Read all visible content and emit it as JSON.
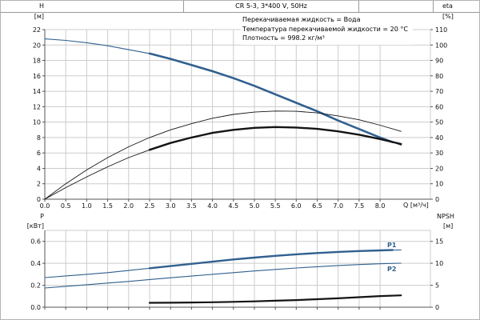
{
  "header": {
    "title": "CR 5-3, 3*400 V, 50Hz"
  },
  "annotations": [
    "Перекачиваемая жидкость = Вода",
    "Температура перекачиваемой жидкости = 20 °C",
    "Плотность = 998.2 кг/м³"
  ],
  "axis_labels": {
    "h": [
      "H",
      "[м]"
    ],
    "eta": [
      "eta",
      "[%]"
    ],
    "p": [
      "P",
      "[кВт]"
    ],
    "npsh": [
      "NPSH",
      "[м]"
    ],
    "q": "Q [м³/ч]"
  },
  "curve_labels": {
    "p1": "P1",
    "p2": "P2"
  },
  "colors": {
    "blue": "#31608f",
    "black": "#141414",
    "grid": "#cccccc",
    "axis": "#555555"
  },
  "chart_data": [
    {
      "id": "head",
      "type": "line",
      "title": "CR 5-3, 3*400 V, 50Hz",
      "xlabel": "Q [м³/ч]",
      "ylabel_left": "H [м]",
      "ylabel_right": "eta [%]",
      "xlim": [
        0,
        9.2
      ],
      "ylim_left": [
        0,
        22
      ],
      "ylim_right": [
        0,
        110
      ],
      "xticks": [
        0,
        0.5,
        1,
        1.5,
        2,
        2.5,
        3,
        3.5,
        4,
        4.5,
        5,
        5.5,
        6,
        6.5,
        7,
        7.5,
        8
      ],
      "yticks_left": [
        0,
        2,
        4,
        6,
        8,
        10,
        12,
        14,
        16,
        18,
        20,
        22
      ],
      "yticks_right": [
        0,
        10,
        20,
        30,
        40,
        50,
        60,
        70,
        80,
        90,
        100,
        110
      ],
      "dp_x": 1,
      "dp_left": 0,
      "dp_right": 0,
      "grid": true,
      "series": [
        {
          "name": "head-curve",
          "axis": "left",
          "color": "blue",
          "width": 1.1,
          "points": [
            [
              0,
              20.8
            ],
            [
              0.5,
              20.6
            ],
            [
              1,
              20.3
            ],
            [
              1.5,
              19.9
            ],
            [
              2,
              19.4
            ],
            [
              2.5,
              18.9
            ],
            [
              3,
              18.2
            ],
            [
              3.5,
              17.4
            ],
            [
              4,
              16.6
            ],
            [
              4.5,
              15.7
            ],
            [
              5,
              14.7
            ],
            [
              5.5,
              13.6
            ],
            [
              6,
              12.5
            ],
            [
              6.5,
              11.4
            ],
            [
              7,
              10.2
            ],
            [
              7.5,
              9.1
            ],
            [
              8,
              8.0
            ],
            [
              8.5,
              7.0
            ]
          ]
        },
        {
          "name": "head-curve-duty",
          "axis": "left",
          "color": "blue",
          "width": 2.6,
          "points": [
            [
              2.5,
              18.9
            ],
            [
              3,
              18.2
            ],
            [
              3.5,
              17.4
            ],
            [
              4,
              16.6
            ],
            [
              4.5,
              15.7
            ],
            [
              5,
              14.7
            ],
            [
              5.5,
              13.6
            ],
            [
              6,
              12.5
            ],
            [
              6.5,
              11.4
            ],
            [
              7,
              10.2
            ],
            [
              7.5,
              9.1
            ],
            [
              8,
              8.0
            ],
            [
              8.3,
              7.4
            ]
          ]
        },
        {
          "name": "eta-pump-curve",
          "axis": "right",
          "color": "black",
          "width": 0.9,
          "points": [
            [
              0,
              0
            ],
            [
              0.5,
              10
            ],
            [
              1,
              19
            ],
            [
              1.5,
              27
            ],
            [
              2,
              34
            ],
            [
              2.5,
              40
            ],
            [
              3,
              45
            ],
            [
              3.5,
              49
            ],
            [
              4,
              52.5
            ],
            [
              4.5,
              55
            ],
            [
              5,
              56.5
            ],
            [
              5.5,
              57.2
            ],
            [
              6,
              57
            ],
            [
              6.5,
              56
            ],
            [
              7,
              54
            ],
            [
              7.5,
              51.5
            ],
            [
              8,
              48
            ],
            [
              8.5,
              44
            ]
          ]
        },
        {
          "name": "eta-total-curve",
          "axis": "right",
          "color": "black",
          "width": 0.9,
          "points": [
            [
              0,
              0
            ],
            [
              0.5,
              7.5
            ],
            [
              1,
              14.5
            ],
            [
              1.5,
              21
            ],
            [
              2,
              27
            ],
            [
              2.5,
              32
            ],
            [
              3,
              36.5
            ],
            [
              3.5,
              40
            ],
            [
              4,
              43
            ],
            [
              4.5,
              45
            ],
            [
              5,
              46.3
            ],
            [
              5.5,
              46.8
            ],
            [
              6,
              46.5
            ],
            [
              6.5,
              45.6
            ],
            [
              7,
              44
            ],
            [
              7.5,
              41.8
            ],
            [
              8,
              39
            ],
            [
              8.5,
              35.8
            ]
          ]
        },
        {
          "name": "eta-duty-curve",
          "axis": "right",
          "color": "black",
          "width": 2.4,
          "points": [
            [
              2.5,
              32
            ],
            [
              3,
              36.5
            ],
            [
              3.5,
              40
            ],
            [
              4,
              43
            ],
            [
              4.5,
              45
            ],
            [
              5,
              46.3
            ],
            [
              5.5,
              46.8
            ],
            [
              6,
              46.5
            ],
            [
              6.5,
              45.6
            ],
            [
              7,
              44
            ],
            [
              7.5,
              41.8
            ],
            [
              8,
              39
            ],
            [
              8.5,
              35.8
            ]
          ]
        }
      ]
    },
    {
      "id": "power",
      "type": "line",
      "title": "",
      "xlabel": "",
      "ylabel_left": "P [кВт]",
      "ylabel_right": "NPSH [м]",
      "xlim": [
        0,
        9.2
      ],
      "ylim_left": [
        0,
        0.7
      ],
      "ylim_right": [
        0,
        17.5
      ],
      "xticks": [
        0,
        0.5,
        1,
        1.5,
        2,
        2.5,
        3,
        3.5,
        4,
        4.5,
        5,
        5.5,
        6,
        6.5,
        7,
        7.5,
        8
      ],
      "yticks_left": [
        0,
        0.2,
        0.4,
        0.6
      ],
      "yticks_right": [
        0,
        5,
        10,
        15
      ],
      "dp_x": 1,
      "dp_left": 1,
      "dp_right": 0,
      "grid": true,
      "series": [
        {
          "name": "p1-curve",
          "axis": "left",
          "color": "blue",
          "width": 1.1,
          "points": [
            [
              0,
              0.27
            ],
            [
              0.5,
              0.285
            ],
            [
              1,
              0.3
            ],
            [
              1.5,
              0.315
            ],
            [
              2,
              0.335
            ],
            [
              2.5,
              0.355
            ],
            [
              3,
              0.375
            ],
            [
              3.5,
              0.395
            ],
            [
              4,
              0.415
            ],
            [
              4.5,
              0.435
            ],
            [
              5,
              0.452
            ],
            [
              5.5,
              0.468
            ],
            [
              6,
              0.482
            ],
            [
              6.5,
              0.494
            ],
            [
              7,
              0.504
            ],
            [
              7.5,
              0.512
            ],
            [
              8,
              0.518
            ],
            [
              8.5,
              0.522
            ]
          ]
        },
        {
          "name": "p1-curve-duty",
          "axis": "left",
          "color": "blue",
          "width": 2.4,
          "points": [
            [
              2.5,
              0.355
            ],
            [
              3,
              0.375
            ],
            [
              3.5,
              0.395
            ],
            [
              4,
              0.415
            ],
            [
              4.5,
              0.435
            ],
            [
              5,
              0.452
            ],
            [
              5.5,
              0.468
            ],
            [
              6,
              0.482
            ],
            [
              6.5,
              0.494
            ],
            [
              7,
              0.504
            ],
            [
              7.5,
              0.512
            ],
            [
              8,
              0.518
            ],
            [
              8.3,
              0.521
            ]
          ]
        },
        {
          "name": "p2-curve",
          "axis": "left",
          "color": "blue",
          "width": 1.1,
          "points": [
            [
              0,
              0.175
            ],
            [
              0.5,
              0.19
            ],
            [
              1,
              0.205
            ],
            [
              1.5,
              0.22
            ],
            [
              2,
              0.235
            ],
            [
              2.5,
              0.252
            ],
            [
              3,
              0.268
            ],
            [
              3.5,
              0.284
            ],
            [
              4,
              0.3
            ],
            [
              4.5,
              0.315
            ],
            [
              5,
              0.33
            ],
            [
              5.5,
              0.344
            ],
            [
              6,
              0.357
            ],
            [
              6.5,
              0.369
            ],
            [
              7,
              0.38
            ],
            [
              7.5,
              0.389
            ],
            [
              8,
              0.396
            ],
            [
              8.5,
              0.401
            ]
          ]
        },
        {
          "name": "npsh-curve",
          "axis": "right",
          "color": "black",
          "width": 2.2,
          "points": [
            [
              2.5,
              1.0
            ],
            [
              3,
              1.02
            ],
            [
              3.5,
              1.07
            ],
            [
              4,
              1.13
            ],
            [
              4.5,
              1.22
            ],
            [
              5,
              1.33
            ],
            [
              5.5,
              1.47
            ],
            [
              6,
              1.63
            ],
            [
              6.5,
              1.82
            ],
            [
              7,
              2.03
            ],
            [
              7.5,
              2.27
            ],
            [
              8,
              2.53
            ],
            [
              8.5,
              2.7
            ]
          ]
        }
      ]
    }
  ]
}
